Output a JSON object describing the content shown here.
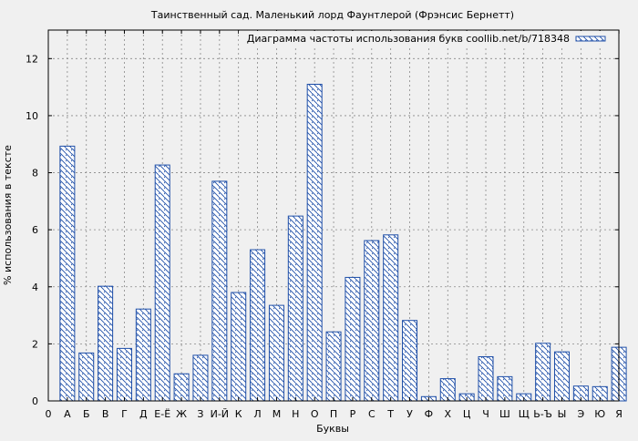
{
  "chart_data": {
    "type": "bar",
    "title": "Таинственный сад. Маленький лорд Фаунтлерой (Фрэнсис Бернетт)",
    "xlabel": "Буквы",
    "ylabel": "% использования в тексте",
    "legend": "Диаграмма частоты использования букв coollib.net/b/718348",
    "legend_position": "top-right",
    "grid": true,
    "ylim": [
      0,
      13
    ],
    "yticks": [
      0,
      2,
      4,
      6,
      8,
      10,
      12
    ],
    "x_origin_label": "0",
    "categories": [
      "А",
      "Б",
      "В",
      "Г",
      "Д",
      "Е-Ё",
      "Ж",
      "З",
      "И-Й",
      "К",
      "Л",
      "М",
      "Н",
      "О",
      "П",
      "Р",
      "С",
      "Т",
      "У",
      "Ф",
      "Х",
      "Ц",
      "Ч",
      "Ш",
      "Щ",
      "Ь-Ъ",
      "Ы",
      "Э",
      "Ю",
      "Я"
    ],
    "values": [
      8.93,
      1.68,
      4.02,
      1.84,
      3.22,
      8.27,
      0.95,
      1.6,
      7.7,
      3.8,
      5.3,
      3.35,
      6.48,
      11.1,
      2.42,
      4.33,
      5.62,
      5.82,
      2.82,
      0.15,
      0.78,
      0.25,
      1.55,
      0.85,
      0.25,
      2.02,
      1.72,
      0.52,
      0.5,
      1.88
    ]
  },
  "colors": {
    "background": "#f0f0f0",
    "plot_area": "#f0f0f0",
    "bar_stroke": "#1f4fa8",
    "grid": "#888888"
  }
}
